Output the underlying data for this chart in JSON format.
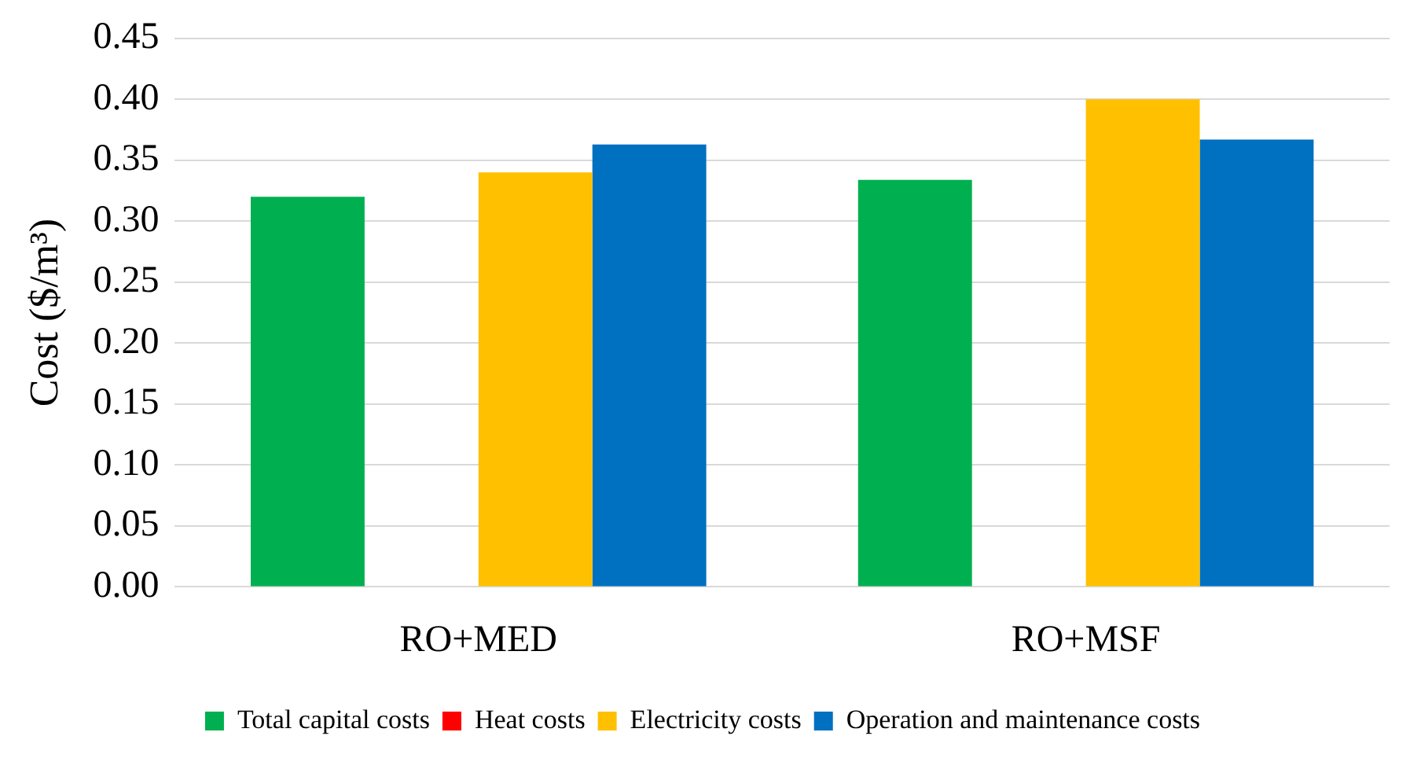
{
  "chart_data": {
    "type": "bar",
    "ylabel": "Cost ($/m³)",
    "categories": [
      "RO+MED",
      "RO+MSF"
    ],
    "series": [
      {
        "name": "Total capital costs",
        "color": "#00b050",
        "values": [
          0.32,
          0.334
        ]
      },
      {
        "name": "Heat costs",
        "color": "#ff0000",
        "values": [
          0,
          0
        ]
      },
      {
        "name": "Electricity costs",
        "color": "#ffc000",
        "values": [
          0.34,
          0.4
        ]
      },
      {
        "name": "Operation and maintenance costs",
        "color": "#0070c0",
        "values": [
          0.363,
          0.367
        ]
      }
    ],
    "ylim": [
      0,
      0.45
    ],
    "yticks": [
      {
        "value": 0,
        "label": "0.00"
      },
      {
        "value": 0.05,
        "label": "0.05"
      },
      {
        "value": 0.1,
        "label": "0.10"
      },
      {
        "value": 0.15,
        "label": "0.15"
      },
      {
        "value": 0.2,
        "label": "0.20"
      },
      {
        "value": 0.25,
        "label": "0.25"
      },
      {
        "value": 0.3,
        "label": "0.30"
      },
      {
        "value": 0.35,
        "label": "0.35"
      },
      {
        "value": 0.4,
        "label": "0.40"
      },
      {
        "value": 0.45,
        "label": "0.45"
      }
    ],
    "grid": "y",
    "legend": "bottom"
  }
}
